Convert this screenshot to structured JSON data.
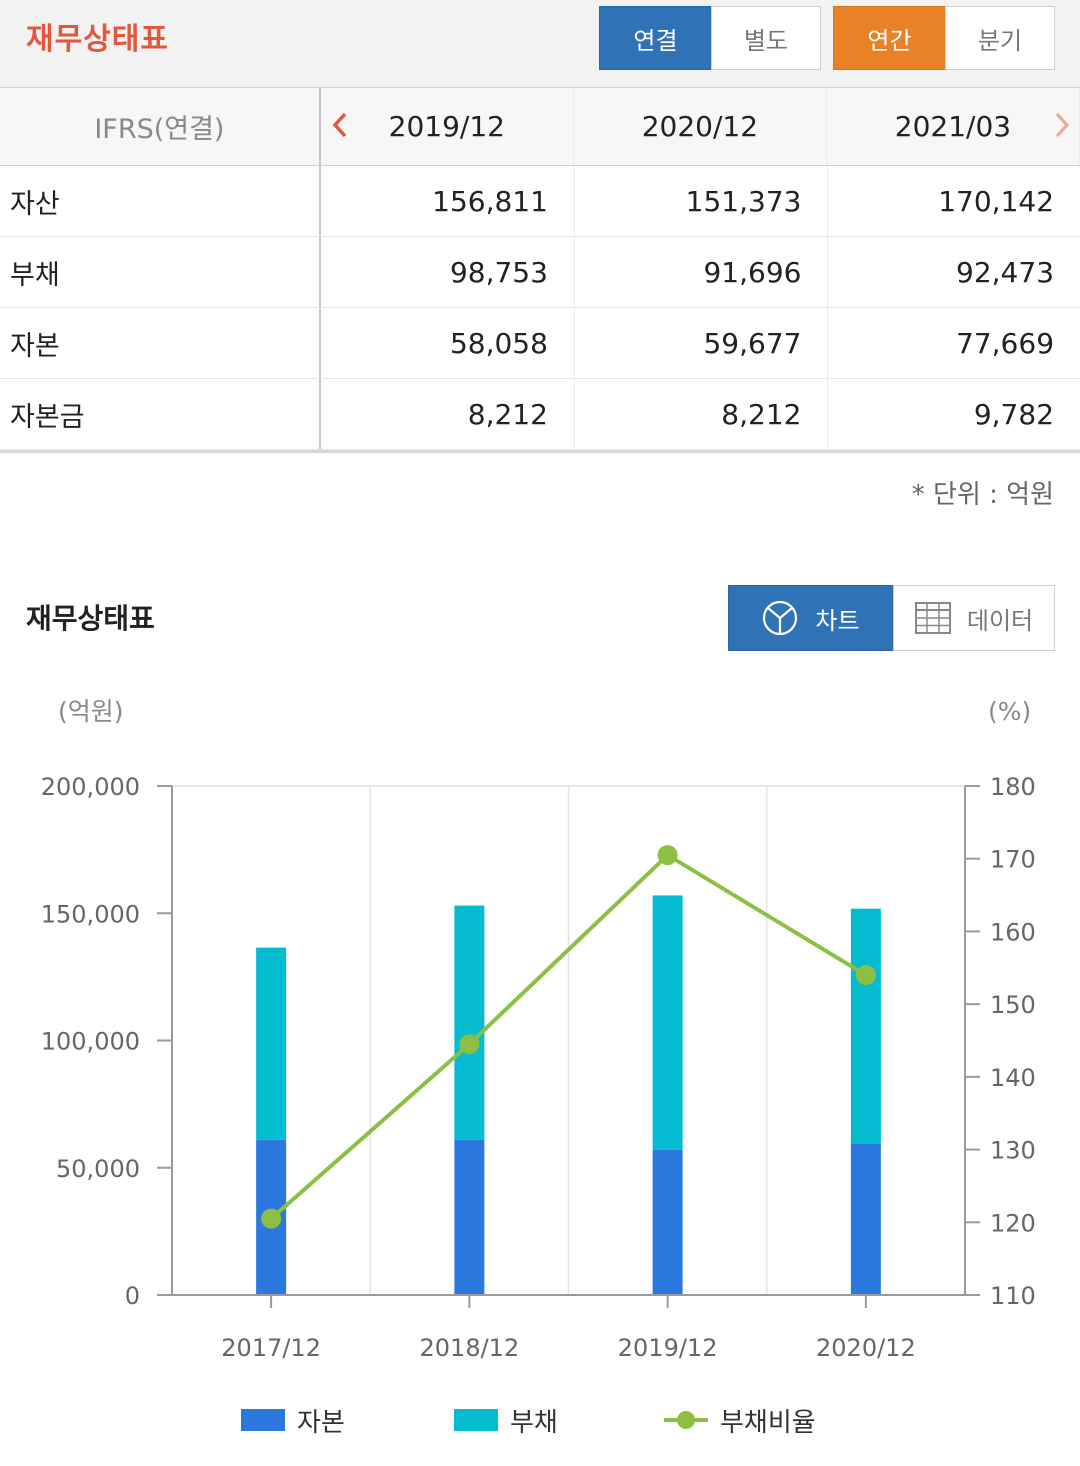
{
  "header": {
    "title": "재무상태표",
    "scope_tabs": [
      {
        "label": "연결",
        "active": true
      },
      {
        "label": "별도",
        "active": false
      }
    ],
    "period_tabs": [
      {
        "label": "연간",
        "active": true
      },
      {
        "label": "분기",
        "active": false
      }
    ]
  },
  "table": {
    "label_header": "IFRS(연결)",
    "columns": [
      "2019/12",
      "2020/12",
      "2021/03"
    ],
    "prev_icon": "chevron-left-icon",
    "next_icon": "chevron-right-icon",
    "rows": [
      {
        "label": "자산",
        "values": [
          "156,811",
          "151,373",
          "170,142"
        ]
      },
      {
        "label": "부채",
        "values": [
          "98,753",
          "91,696",
          "92,473"
        ]
      },
      {
        "label": "자본",
        "values": [
          "58,058",
          "59,677",
          "77,669"
        ]
      },
      {
        "label": "자본금",
        "values": [
          "8,212",
          "8,212",
          "9,782"
        ]
      }
    ],
    "unit_note": "* 단위 : 억원"
  },
  "chart_section": {
    "title": "재무상태표",
    "chart_button": "차트",
    "data_button": "데이터",
    "chart_icon": "pie-chart-icon",
    "data_icon": "table-grid-icon"
  },
  "colors": {
    "brand_red": "#e2573d",
    "tab_blue": "#2f73b6",
    "tab_orange": "#e98127",
    "equity_bar": "#2b79df",
    "debt_bar": "#05bbd0",
    "ratio_line": "#8cbf44"
  },
  "chart_data": {
    "type": "bar",
    "stacked": true,
    "categories": [
      "2017/12",
      "2018/12",
      "2019/12",
      "2020/12"
    ],
    "series": [
      {
        "name": "자본",
        "axis": "left",
        "values": [
          61000,
          61000,
          57000,
          59500
        ]
      },
      {
        "name": "부채",
        "axis": "left",
        "values": [
          75500,
          92000,
          100000,
          92300
        ]
      },
      {
        "name": "부채비율",
        "type": "line",
        "axis": "right",
        "values": [
          120.5,
          144.5,
          170.5,
          154
        ]
      }
    ],
    "y_left": {
      "unit": "(억원)",
      "ylim": [
        0,
        200000
      ],
      "ticks": [
        "0",
        "50,000",
        "100,000",
        "150,000",
        "200,000"
      ],
      "tick_values": [
        0,
        50000,
        100000,
        150000,
        200000
      ]
    },
    "y_right": {
      "unit": "(%)",
      "ylim": [
        110,
        180
      ],
      "ticks": [
        "110",
        "120",
        "130",
        "140",
        "150",
        "160",
        "170",
        "180"
      ],
      "tick_values": [
        110,
        120,
        130,
        140,
        150,
        160,
        170,
        180
      ]
    },
    "grid": true,
    "legend_position": "bottom"
  }
}
